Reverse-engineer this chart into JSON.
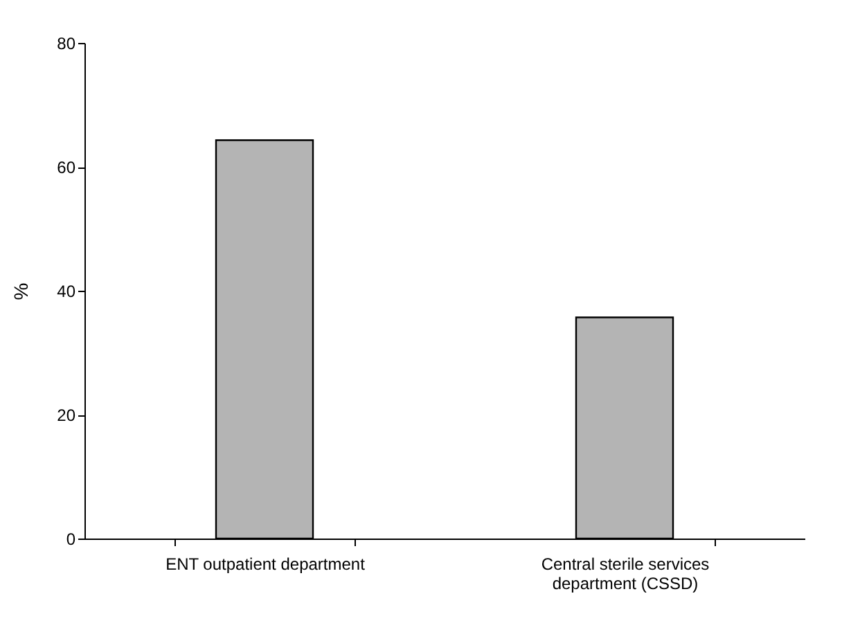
{
  "chart_data": {
    "type": "bar",
    "ylabel": "%",
    "categories": [
      "ENT outpatient department",
      "Central sterile services department (CSSD)"
    ],
    "values": [
      64.3,
      35.7
    ],
    "color": "#b4b4b4",
    "ylim": [
      0,
      80
    ],
    "yticks": [
      0,
      20,
      40,
      60,
      80
    ],
    "grid": false
  }
}
